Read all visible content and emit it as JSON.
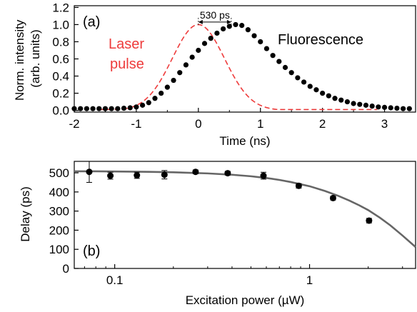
{
  "chart_data": [
    {
      "panel_label": "(a)",
      "type": "scatter",
      "xlabel": "Time (ns)",
      "ylabel": [
        "Norm. intensity",
        "(arb. units)"
      ],
      "xlim": [
        -2,
        3.5
      ],
      "ylim": [
        -0.02,
        1.22
      ],
      "xticks": [
        -2,
        -1,
        0,
        1,
        2,
        3
      ],
      "xtick_labels": [
        "-2",
        "-1",
        "0",
        "1",
        "2",
        "3"
      ],
      "yticks": [
        0,
        0.2,
        0.4,
        0.6,
        0.8,
        1.0,
        1.2
      ],
      "ytick_labels": [
        "0.0",
        "0.2",
        "0.4",
        "0.6",
        "0.8",
        "1.0",
        "1.2"
      ],
      "annotations": {
        "laser_line1": "Laser",
        "laser_line2": "pulse",
        "fluorescence": "Fluorescence",
        "delay": "530 ps"
      },
      "delay_arrow_ns": [
        0.0,
        0.53
      ],
      "series": [
        {
          "role": "laser pulse (dashed curve)",
          "style": "dashed",
          "color": "#ee3b3b",
          "gaussian_center": 0.0,
          "gaussian_sigma": 0.42,
          "amplitude": 1.0
        },
        {
          "role": "fluorescence (points)",
          "style": "markers",
          "color": "#000000",
          "x": [
            -2.0,
            -1.9,
            -1.8,
            -1.7,
            -1.6,
            -1.5,
            -1.4,
            -1.3,
            -1.2,
            -1.1,
            -1.0,
            -0.9,
            -0.8,
            -0.7,
            -0.6,
            -0.5,
            -0.4,
            -0.3,
            -0.2,
            -0.1,
            0.0,
            0.1,
            0.2,
            0.3,
            0.4,
            0.5,
            0.6,
            0.7,
            0.8,
            0.9,
            1.0,
            1.1,
            1.2,
            1.3,
            1.4,
            1.5,
            1.6,
            1.7,
            1.8,
            1.9,
            2.0,
            2.1,
            2.2,
            2.3,
            2.4,
            2.5,
            2.6,
            2.7,
            2.8,
            2.9,
            3.0,
            3.1,
            3.2,
            3.3,
            3.4
          ],
          "y": [
            0.02,
            0.02,
            0.02,
            0.02,
            0.02,
            0.02,
            0.02,
            0.02,
            0.025,
            0.03,
            0.04,
            0.06,
            0.09,
            0.14,
            0.2,
            0.27,
            0.35,
            0.44,
            0.53,
            0.62,
            0.7,
            0.78,
            0.84,
            0.9,
            0.95,
            0.98,
            1.0,
            0.99,
            0.94,
            0.87,
            0.8,
            0.72,
            0.64,
            0.57,
            0.5,
            0.44,
            0.38,
            0.33,
            0.28,
            0.24,
            0.2,
            0.17,
            0.14,
            0.12,
            0.1,
            0.08,
            0.07,
            0.06,
            0.05,
            0.04,
            0.035,
            0.03,
            0.025,
            0.02,
            0.02
          ]
        }
      ]
    },
    {
      "panel_label": "(b)",
      "type": "scatter",
      "xlabel": "Excitation power (µW)",
      "ylabel": "Delay (ps)",
      "xscale": "log",
      "xlim": [
        0.062,
        3.5
      ],
      "ylim": [
        0,
        560
      ],
      "xticks": [
        0.1,
        1
      ],
      "xtick_labels": [
        "0.1",
        "1"
      ],
      "yticks": [
        0,
        100,
        200,
        300,
        400,
        500
      ],
      "ytick_labels": [
        "0",
        "100",
        "200",
        "300",
        "400",
        "500"
      ],
      "series": [
        {
          "role": "measured delay",
          "style": "markers",
          "color": "#000000",
          "x": [
            0.074,
            0.095,
            0.13,
            0.18,
            0.26,
            0.38,
            0.58,
            0.88,
            1.32,
            2.02
          ],
          "y": [
            505,
            485,
            487,
            490,
            505,
            498,
            485,
            432,
            368,
            250
          ],
          "yerr": [
            55,
            18,
            16,
            22,
            10,
            10,
            18,
            12,
            10,
            12
          ]
        },
        {
          "role": "fit",
          "style": "line",
          "color": "#666666",
          "x": [
            0.062,
            0.08,
            0.1,
            0.15,
            0.2,
            0.3,
            0.4,
            0.5,
            0.6,
            0.7,
            0.8,
            1.0,
            1.2,
            1.4,
            1.6,
            1.8,
            2.0,
            2.3,
            2.6,
            3.0,
            3.5
          ],
          "y": [
            508,
            508,
            507,
            505,
            503,
            497,
            490,
            482,
            473,
            463,
            452,
            430,
            405,
            380,
            355,
            330,
            305,
            265,
            225,
            172,
            112
          ]
        }
      ]
    }
  ]
}
